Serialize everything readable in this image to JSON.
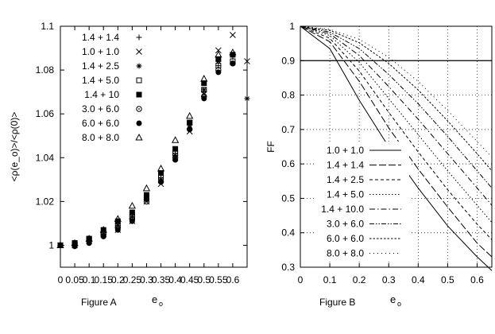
{
  "chart_data": [
    {
      "type": "scatter",
      "panel_label": "Figure A",
      "xlabel": "e",
      "xlabel_sub": "o",
      "ylabel": "<ρ(e_o)>/<ρ(0)>",
      "xlim": [
        0,
        0.65
      ],
      "ylim": [
        0.99,
        1.1
      ],
      "xticks": [
        0,
        0.05,
        0.1,
        0.15,
        0.2,
        0.25,
        0.3,
        0.35,
        0.4,
        0.45,
        0.5,
        0.55,
        0.6
      ],
      "xticklabels": [
        "0",
        "0.05",
        "0.1",
        "0.15",
        "0.2",
        "0.25",
        "0.3",
        "0.35",
        "0.4",
        "0.45",
        "0.5",
        "0.55",
        "0.6"
      ],
      "yticks": [
        1,
        1.02,
        1.04,
        1.06,
        1.08,
        1.1
      ],
      "yticklabels": [
        "1",
        "1.02",
        "1.04",
        "1.06",
        "1.08",
        "1.1"
      ],
      "grid": false,
      "legend_position": "top-left",
      "series": [
        {
          "name": "1.4 + 1.4",
          "marker": "plus",
          "x": [
            0,
            0.05,
            0.1,
            0.15,
            0.2,
            0.25,
            0.3,
            0.35,
            0.4,
            0.45,
            0.5,
            0.55,
            0.6
          ],
          "y": [
            1.0,
            1.001,
            1.003,
            1.006,
            1.01,
            1.015,
            1.022,
            1.031,
            1.042,
            1.055,
            1.07,
            1.082,
            1.086
          ]
        },
        {
          "name": "1.0 + 1.0",
          "marker": "x",
          "x": [
            0,
            0.05,
            0.1,
            0.15,
            0.2,
            0.25,
            0.3,
            0.35,
            0.4,
            0.45,
            0.5,
            0.55,
            0.6,
            0.65
          ],
          "y": [
            1.0,
            1.0,
            1.002,
            1.005,
            1.007,
            1.011,
            1.02,
            1.028,
            1.04,
            1.052,
            1.069,
            1.089,
            1.096,
            1.084
          ]
        },
        {
          "name": "1.4 + 2.5",
          "marker": "asterisk",
          "x": [
            0,
            0.05,
            0.1,
            0.15,
            0.2,
            0.25,
            0.3,
            0.35,
            0.4,
            0.45,
            0.5,
            0.55,
            0.6,
            0.65
          ],
          "y": [
            1.0,
            1.001,
            1.002,
            1.005,
            1.009,
            1.013,
            1.021,
            1.03,
            1.041,
            1.055,
            1.071,
            1.084,
            1.087,
            1.067
          ]
        },
        {
          "name": "1.4 + 5.0",
          "marker": "square-open",
          "x": [
            0,
            0.05,
            0.1,
            0.15,
            0.2,
            0.25,
            0.3,
            0.35,
            0.4,
            0.45,
            0.5,
            0.55,
            0.6
          ],
          "y": [
            1.0,
            1.001,
            1.003,
            1.005,
            1.009,
            1.013,
            1.022,
            1.031,
            1.042,
            1.056,
            1.071,
            1.082,
            1.084
          ]
        },
        {
          "name": "1.4 + 10",
          "marker": "square-filled",
          "x": [
            0,
            0.05,
            0.1,
            0.15,
            0.2,
            0.25,
            0.3,
            0.35,
            0.4,
            0.45,
            0.5,
            0.55,
            0.6
          ],
          "y": [
            1.0,
            1.001,
            1.003,
            1.007,
            1.011,
            1.015,
            1.023,
            1.033,
            1.044,
            1.056,
            1.074,
            1.085,
            1.087
          ]
        },
        {
          "name": "3.0 + 6.0",
          "marker": "circle-dot",
          "x": [
            0,
            0.05,
            0.1,
            0.15,
            0.2,
            0.25,
            0.3,
            0.35,
            0.4,
            0.45,
            0.5,
            0.55,
            0.6
          ],
          "y": [
            1.0,
            1.0,
            1.002,
            1.005,
            1.008,
            1.012,
            1.02,
            1.029,
            1.04,
            1.053,
            1.068,
            1.08,
            1.083
          ]
        },
        {
          "name": "6.0 + 6.0",
          "marker": "circle-filled",
          "x": [
            0,
            0.05,
            0.1,
            0.15,
            0.2,
            0.25,
            0.3,
            0.35,
            0.4,
            0.45,
            0.5,
            0.55,
            0.6
          ],
          "y": [
            1.0,
            0.9995,
            1.001,
            1.004,
            1.007,
            1.011,
            1.021,
            1.029,
            1.039,
            1.053,
            1.067,
            1.079,
            1.083
          ]
        },
        {
          "name": "8.0 + 8.0",
          "marker": "triangle-open",
          "x": [
            0,
            0.05,
            0.1,
            0.15,
            0.2,
            0.25,
            0.3,
            0.35,
            0.4,
            0.45,
            0.5,
            0.55,
            0.6
          ],
          "y": [
            1.0,
            1.001,
            1.003,
            1.007,
            1.012,
            1.018,
            1.026,
            1.035,
            1.048,
            1.059,
            1.076,
            1.087,
            1.088
          ]
        }
      ]
    },
    {
      "type": "line",
      "panel_label": "Figure B",
      "xlabel": "e",
      "xlabel_sub": "o",
      "ylabel": "FF",
      "xlim": [
        0,
        0.65
      ],
      "ylim": [
        0.3,
        1.0
      ],
      "xticks": [
        0,
        0.1,
        0.2,
        0.3,
        0.4,
        0.5,
        0.6
      ],
      "xticklabels": [
        "0",
        "0.1",
        "0.2",
        "0.3",
        "0.4",
        "0.5",
        "0.6"
      ],
      "yticks": [
        0.3,
        0.4,
        0.5,
        0.6,
        0.7,
        0.8,
        0.9,
        1.0
      ],
      "yticklabels": [
        "0.3",
        "0.4",
        "0.5",
        "0.6",
        "0.7",
        "0.8",
        "0.9",
        "1"
      ],
      "grid": true,
      "reference_line_y": 0.9,
      "legend_position": "bottom-left",
      "series": [
        {
          "name": "1.0 + 1.0",
          "dash": "solid",
          "x": [
            0,
            0.1,
            0.2,
            0.3,
            0.4,
            0.5,
            0.6,
            0.65
          ],
          "y": [
            1.0,
            0.935,
            0.785,
            0.65,
            0.53,
            0.42,
            0.33,
            0.29
          ]
        },
        {
          "name": "1.4 + 1.4",
          "dash": "long-dash",
          "x": [
            0,
            0.1,
            0.2,
            0.3,
            0.4,
            0.5,
            0.6,
            0.65
          ],
          "y": [
            1.0,
            0.955,
            0.84,
            0.705,
            0.585,
            0.475,
            0.37,
            0.33
          ]
        },
        {
          "name": "1.4 + 2.5",
          "dash": "short-dash",
          "x": [
            0,
            0.1,
            0.2,
            0.3,
            0.4,
            0.5,
            0.6,
            0.65
          ],
          "y": [
            1.0,
            0.965,
            0.87,
            0.75,
            0.635,
            0.525,
            0.425,
            0.38
          ]
        },
        {
          "name": "1.4 + 5.0",
          "dash": "dotted",
          "x": [
            0,
            0.1,
            0.2,
            0.3,
            0.4,
            0.5,
            0.6,
            0.65
          ],
          "y": [
            1.0,
            0.973,
            0.895,
            0.79,
            0.685,
            0.58,
            0.48,
            0.43
          ]
        },
        {
          "name": "1.4 + 10.0",
          "dash": "dash-dot",
          "x": [
            0,
            0.1,
            0.2,
            0.3,
            0.4,
            0.5,
            0.6,
            0.65
          ],
          "y": [
            1.0,
            0.978,
            0.915,
            0.825,
            0.73,
            0.63,
            0.53,
            0.48
          ]
        },
        {
          "name": "3.0 + 6.0",
          "dash": "dash-dot-dot",
          "x": [
            0,
            0.1,
            0.2,
            0.3,
            0.4,
            0.5,
            0.6,
            0.65
          ],
          "y": [
            1.0,
            0.983,
            0.935,
            0.86,
            0.775,
            0.68,
            0.58,
            0.53
          ]
        },
        {
          "name": "6.0 + 6.0",
          "dash": "fine-dash",
          "x": [
            0,
            0.1,
            0.2,
            0.3,
            0.4,
            0.5,
            0.6,
            0.65
          ],
          "y": [
            1.0,
            0.988,
            0.952,
            0.892,
            0.815,
            0.725,
            0.63,
            0.58
          ]
        },
        {
          "name": "8.0 + 8.0",
          "dash": "sparse-dot",
          "x": [
            0,
            0.1,
            0.2,
            0.3,
            0.4,
            0.5,
            0.6,
            0.65
          ],
          "y": [
            1.0,
            0.991,
            0.962,
            0.91,
            0.84,
            0.755,
            0.665,
            0.62
          ]
        }
      ]
    }
  ]
}
